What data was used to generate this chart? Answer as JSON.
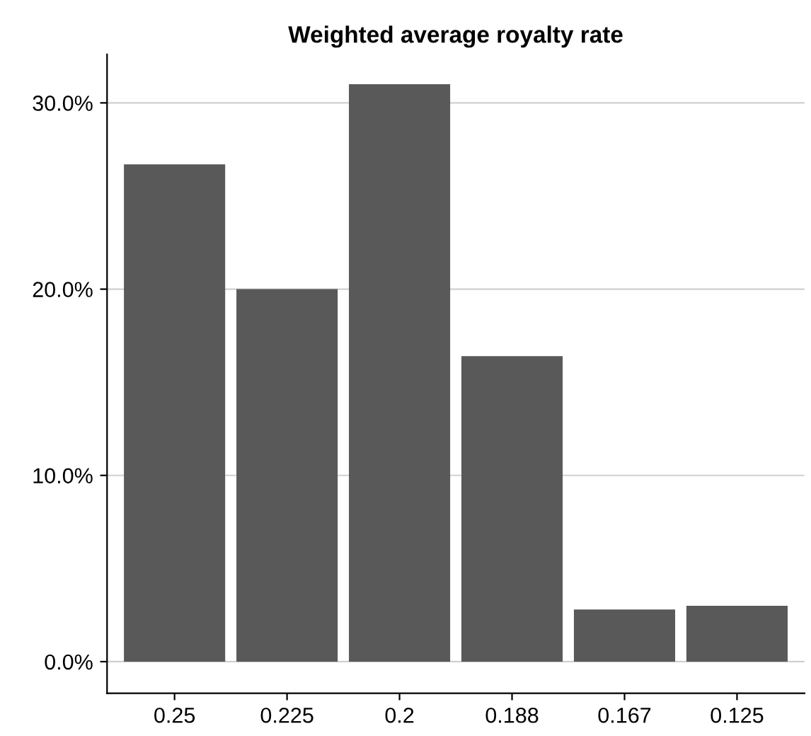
{
  "chart_data": {
    "type": "bar",
    "title": "Weighted average royalty rate",
    "categories": [
      "0.25",
      "0.225",
      "0.2",
      "0.188",
      "0.167",
      "0.125"
    ],
    "values": [
      26.7,
      20.0,
      31.0,
      16.4,
      2.8,
      3.0
    ],
    "color": "#595959",
    "ylim": [
      -1.7,
      32.6
    ],
    "yticks": [
      {
        "value": 0,
        "label": "0.0%"
      },
      {
        "value": 10,
        "label": "10.0%"
      },
      {
        "value": 20,
        "label": "20.0%"
      },
      {
        "value": 30,
        "label": "30.0%"
      }
    ],
    "grid": "y"
  }
}
